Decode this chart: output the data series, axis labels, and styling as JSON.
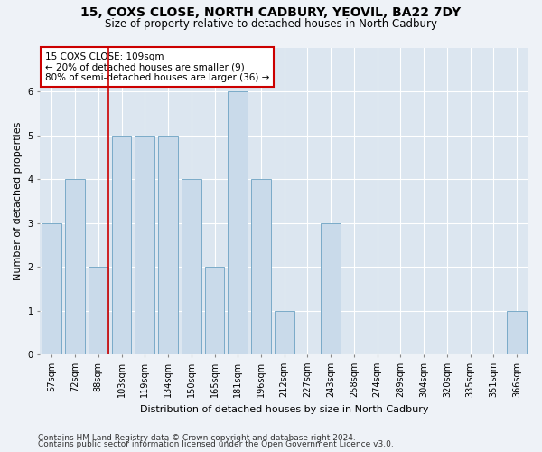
{
  "title": "15, COXS CLOSE, NORTH CADBURY, YEOVIL, BA22 7DY",
  "subtitle": "Size of property relative to detached houses in North Cadbury",
  "xlabel": "Distribution of detached houses by size in North Cadbury",
  "ylabel": "Number of detached properties",
  "categories": [
    "57sqm",
    "72sqm",
    "88sqm",
    "103sqm",
    "119sqm",
    "134sqm",
    "150sqm",
    "165sqm",
    "181sqm",
    "196sqm",
    "212sqm",
    "227sqm",
    "243sqm",
    "258sqm",
    "274sqm",
    "289sqm",
    "304sqm",
    "320sqm",
    "335sqm",
    "351sqm",
    "366sqm"
  ],
  "values": [
    3,
    4,
    2,
    5,
    5,
    5,
    4,
    2,
    6,
    4,
    1,
    0,
    3,
    0,
    0,
    0,
    0,
    0,
    0,
    0,
    1
  ],
  "bar_color": "#c9daea",
  "bar_edge_color": "#7aaac8",
  "vline_x_index": 2,
  "vline_color": "#cc0000",
  "annotation_text": "15 COXS CLOSE: 109sqm\n← 20% of detached houses are smaller (9)\n80% of semi-detached houses are larger (36) →",
  "annotation_box_color": "white",
  "annotation_box_edge_color": "#cc0000",
  "ylim": [
    0,
    7
  ],
  "yticks": [
    0,
    1,
    2,
    3,
    4,
    5,
    6
  ],
  "footer_line1": "Contains HM Land Registry data © Crown copyright and database right 2024.",
  "footer_line2": "Contains public sector information licensed under the Open Government Licence v3.0.",
  "bg_color": "#eef2f7",
  "plot_bg_color": "#dce6f0",
  "grid_color": "white",
  "title_fontsize": 10,
  "subtitle_fontsize": 8.5,
  "xlabel_fontsize": 8,
  "ylabel_fontsize": 8,
  "tick_fontsize": 7,
  "annotation_fontsize": 7.5,
  "footer_fontsize": 6.5
}
